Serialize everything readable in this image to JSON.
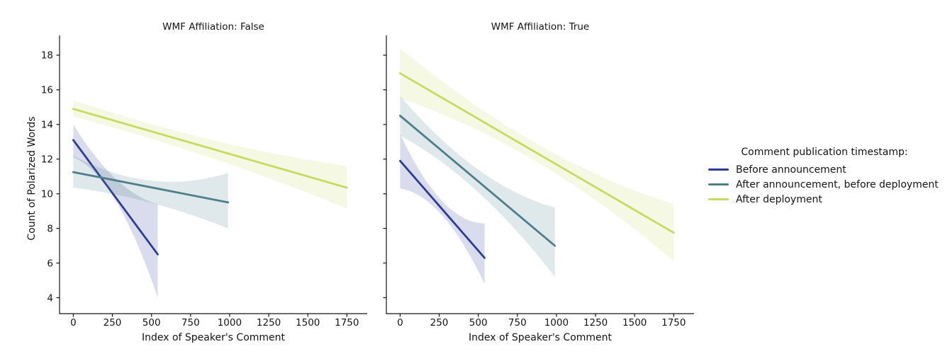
{
  "chart_data": {
    "type": "line",
    "chart_kind": "faceted linear regression fits with confidence bands",
    "xlabel": "Index of Speaker's Comment",
    "ylabel": "Count of Polarized Words",
    "x_ticks": [
      0,
      250,
      500,
      750,
      1000,
      1250,
      1500,
      1750
    ],
    "y_ticks": [
      4,
      6,
      8,
      10,
      12,
      14,
      16,
      18
    ],
    "xlim": [
      -88,
      1880
    ],
    "ylim": [
      3.08,
      19.14
    ],
    "grid": false,
    "band_opacity": 0.18,
    "colors": {
      "before_announcement": "#2d3c97",
      "after_announcement_before_deployment": "#4d7e8a",
      "after_deployment": "#c8da5f"
    },
    "legend": {
      "title": "Comment publication timestamp:",
      "position": "center right",
      "entries": [
        {
          "label": "Before announcement",
          "color": "#2d3c97"
        },
        {
          "label": "After announcement, before deployment",
          "color": "#4d7e8a"
        },
        {
          "label": "After deployment",
          "color": "#c8da5f"
        }
      ]
    },
    "facets": [
      {
        "title": "WMF Affiliation: False",
        "series": [
          {
            "name": "Before announcement",
            "color": "#2d3c97",
            "line": {
              "x": [
                0,
                540
              ],
              "y": [
                13.1,
                6.5
              ]
            },
            "band": {
              "x": [
                0,
                160,
                540
              ],
              "lo": [
                12.1,
                11.0,
                4.0
              ],
              "hi": [
                14.0,
                11.95,
                9.4
              ]
            }
          },
          {
            "name": "After announcement, before deployment",
            "color": "#4d7e8a",
            "line": {
              "x": [
                0,
                990
              ],
              "y": [
                11.25,
                9.5
              ]
            },
            "band": {
              "x": [
                0,
                300,
                990
              ],
              "lo": [
                10.35,
                9.9,
                8.0
              ],
              "hi": [
                12.2,
                11.1,
                11.2
              ]
            }
          },
          {
            "name": "After deployment",
            "color": "#c8da5f",
            "line": {
              "x": [
                0,
                1750
              ],
              "y": [
                14.9,
                10.35
              ]
            },
            "band": {
              "x": [
                0,
                525,
                1750
              ],
              "lo": [
                14.45,
                13.1,
                9.15
              ],
              "hi": [
                15.4,
                13.95,
                11.6
              ]
            }
          }
        ]
      },
      {
        "title": "WMF Affiliation: True",
        "series": [
          {
            "name": "Before announcement",
            "color": "#2d3c97",
            "line": {
              "x": [
                0,
                540
              ],
              "y": [
                11.9,
                6.3
              ]
            },
            "band": {
              "x": [
                0,
                170,
                540
              ],
              "lo": [
                10.3,
                9.6,
                4.8
              ],
              "hi": [
                13.45,
                10.7,
                8.3
              ]
            }
          },
          {
            "name": "After announcement, before deployment",
            "color": "#4d7e8a",
            "line": {
              "x": [
                0,
                990
              ],
              "y": [
                14.5,
                7.0
              ]
            },
            "band": {
              "x": [
                0,
                300,
                990
              ],
              "lo": [
                13.35,
                11.6,
                5.2
              ],
              "hi": [
                15.65,
                12.85,
                9.2
              ]
            }
          },
          {
            "name": "After deployment",
            "color": "#c8da5f",
            "line": {
              "x": [
                0,
                1750
              ],
              "y": [
                16.95,
                7.75
              ]
            },
            "band": {
              "x": [
                0,
                525,
                1750
              ],
              "lo": [
                15.5,
                13.55,
                6.1
              ],
              "hi": [
                18.4,
                14.85,
                9.4
              ]
            }
          }
        ]
      }
    ]
  }
}
